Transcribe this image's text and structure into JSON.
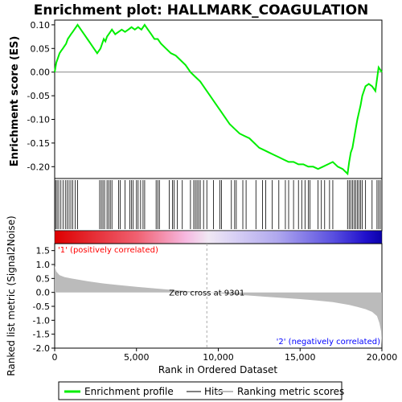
{
  "chart_data": {
    "type": "line",
    "title": "Enrichment plot: HALLMARK_COAGULATION",
    "xlabel": "Rank in Ordered Dataset",
    "ylabel_top": "Enrichment score (ES)",
    "ylabel_bottom": "Ranked list metric (Signal2Noise)",
    "xlim": [
      0,
      20000
    ],
    "x_ticks": [
      0,
      5000,
      10000,
      15000,
      20000
    ],
    "x_tick_labels": [
      "0",
      "5,000",
      "10,000",
      "15,000",
      "20,000"
    ],
    "es_ylim": [
      -0.225,
      0.11
    ],
    "es_y_ticks": [
      0.1,
      0.05,
      0.0,
      -0.05,
      -0.1,
      -0.15,
      -0.2
    ],
    "es_y_tick_labels": [
      "0.10",
      "0.05",
      "0.00",
      "-0.05",
      "-0.10",
      "-0.15",
      "-0.20"
    ],
    "metric_ylim": [
      -2.0,
      1.75
    ],
    "metric_y_ticks": [
      1.5,
      1.0,
      0.5,
      0.0,
      -0.5,
      -1.0,
      -1.5,
      -2.0
    ],
    "metric_y_tick_labels": [
      "1.5",
      "1.0",
      "0.5",
      "0.0",
      "-0.5",
      "-1.0",
      "-1.5",
      "-2.0"
    ],
    "series": [
      {
        "name": "Enrichment profile",
        "color": "#00ee00",
        "x": [
          0,
          100,
          200,
          300,
          400,
          500,
          600,
          700,
          800,
          900,
          1000,
          1100,
          1200,
          1300,
          1400,
          1600,
          1800,
          2000,
          2200,
          2400,
          2600,
          2800,
          2900,
          3000,
          3100,
          3200,
          3300,
          3400,
          3500,
          3700,
          3900,
          4100,
          4300,
          4500,
          4700,
          4900,
          5100,
          5300,
          5500,
          5700,
          5900,
          6100,
          6300,
          6500,
          6800,
          7100,
          7400,
          7700,
          8000,
          8300,
          8600,
          8900,
          9200,
          9500,
          9800,
          10100,
          10400,
          10700,
          11000,
          11300,
          11600,
          11900,
          12200,
          12500,
          12800,
          13100,
          13400,
          13700,
          14000,
          14300,
          14600,
          14900,
          15200,
          15500,
          15800,
          16100,
          16400,
          16700,
          17000,
          17300,
          17600,
          17900,
          18000,
          18100,
          18200,
          18300,
          18400,
          18500,
          18600,
          18700,
          18800,
          18900,
          19000,
          19200,
          19400,
          19600,
          19800,
          20000
        ],
        "y": [
          0.0,
          0.02,
          0.03,
          0.04,
          0.045,
          0.05,
          0.055,
          0.06,
          0.07,
          0.075,
          0.08,
          0.085,
          0.09,
          0.095,
          0.1,
          0.09,
          0.08,
          0.07,
          0.06,
          0.05,
          0.04,
          0.05,
          0.06,
          0.07,
          0.065,
          0.075,
          0.08,
          0.085,
          0.09,
          0.08,
          0.085,
          0.09,
          0.085,
          0.09,
          0.095,
          0.09,
          0.095,
          0.09,
          0.1,
          0.09,
          0.08,
          0.07,
          0.07,
          0.06,
          0.05,
          0.04,
          0.035,
          0.025,
          0.015,
          0.0,
          -0.01,
          -0.02,
          -0.035,
          -0.05,
          -0.065,
          -0.08,
          -0.095,
          -0.11,
          -0.12,
          -0.13,
          -0.135,
          -0.14,
          -0.15,
          -0.16,
          -0.165,
          -0.17,
          -0.175,
          -0.18,
          -0.185,
          -0.19,
          -0.19,
          -0.195,
          -0.195,
          -0.2,
          -0.2,
          -0.205,
          -0.2,
          -0.195,
          -0.19,
          -0.2,
          -0.205,
          -0.215,
          -0.19,
          -0.17,
          -0.16,
          -0.14,
          -0.12,
          -0.1,
          -0.085,
          -0.07,
          -0.05,
          -0.04,
          -0.03,
          -0.025,
          -0.03,
          -0.04,
          0.01,
          0.0
        ]
      }
    ],
    "hits_x": [
      60,
      150,
      250,
      380,
      520,
      650,
      760,
      880,
      990,
      1100,
      1250,
      1400,
      2750,
      2850,
      2950,
      3050,
      3200,
      3300,
      3400,
      3500,
      3900,
      4000,
      4300,
      4600,
      4700,
      4800,
      5000,
      5100,
      5250,
      5400,
      5500,
      6200,
      6300,
      6400,
      7000,
      7200,
      7300,
      7500,
      7800,
      8300,
      8500,
      8600,
      8700,
      8800,
      8900,
      9100,
      9300,
      9700,
      10100,
      10200,
      10800,
      11000,
      11100,
      11500,
      11700,
      12300,
      12700,
      12900,
      13300,
      13700,
      14100,
      14300,
      14600,
      14900,
      15100,
      15300,
      15500,
      15600,
      16100,
      16300,
      16500,
      16800,
      17000,
      17900,
      18000,
      18100,
      18200,
      18300,
      18400,
      18500,
      18600,
      18700,
      18800,
      19000,
      19400,
      19700,
      19800,
      19900
    ],
    "zero_cross_label": "Zero cross at 9301",
    "zero_cross_x": 9301,
    "metric_curve": {
      "x": [
        0,
        100,
        300,
        600,
        1000,
        2000,
        3000,
        4000,
        5000,
        6000,
        7000,
        8000,
        9000,
        9301,
        10000,
        11000,
        12000,
        13000,
        14000,
        15000,
        16000,
        17000,
        18000,
        18500,
        19000,
        19400,
        19700,
        19850,
        19950,
        20000
      ],
      "y": [
        0.95,
        0.75,
        0.62,
        0.55,
        0.5,
        0.4,
        0.32,
        0.26,
        0.2,
        0.15,
        0.1,
        0.05,
        0.01,
        0.0,
        -0.03,
        -0.08,
        -0.12,
        -0.16,
        -0.2,
        -0.24,
        -0.29,
        -0.35,
        -0.45,
        -0.52,
        -0.6,
        -0.7,
        -0.85,
        -1.1,
        -1.4,
        -1.9
      ]
    },
    "annotations": {
      "positive": "'1' (positively correlated)",
      "negative": "'2' (negatively correlated)",
      "positive_color": "#ff0000",
      "negative_color": "#0000ff"
    },
    "legend": [
      {
        "label": "Enrichment profile",
        "color": "#00ee00"
      },
      {
        "label": "Hits",
        "color": "#000000"
      },
      {
        "label": "Ranking metric scores",
        "color": "#bbbbbb"
      }
    ]
  }
}
